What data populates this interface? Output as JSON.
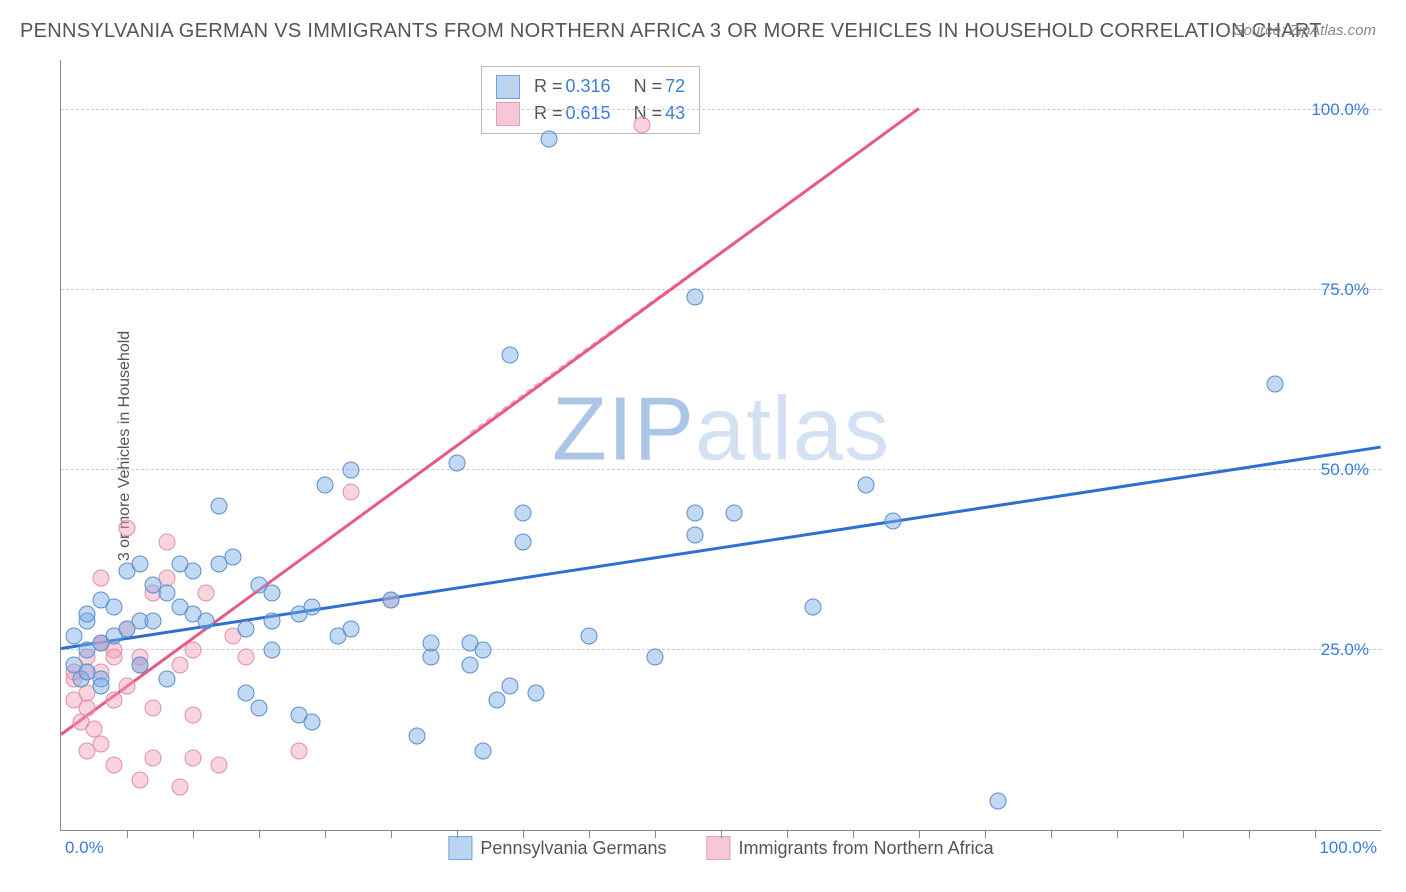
{
  "title": "PENNSYLVANIA GERMAN VS IMMIGRANTS FROM NORTHERN AFRICA 3 OR MORE VEHICLES IN HOUSEHOLD CORRELATION CHART",
  "source": "Source: ZipAtlas.com",
  "y_axis_label": "3 or more Vehicles in Household",
  "watermark_a": "ZIP",
  "watermark_b": "atlas",
  "chart": {
    "type": "scatter",
    "xlim": [
      0,
      100
    ],
    "ylim": [
      0,
      107
    ],
    "x_tick_min": "0.0%",
    "x_tick_max": "100.0%",
    "y_ticks": [
      {
        "v": 25,
        "label": "25.0%"
      },
      {
        "v": 50,
        "label": "50.0%"
      },
      {
        "v": 75,
        "label": "75.0%"
      },
      {
        "v": 100,
        "label": "100.0%"
      }
    ],
    "x_minor_ticks": [
      5,
      10,
      15,
      20,
      25,
      30,
      35,
      40,
      45,
      50,
      55,
      60,
      65,
      70,
      75,
      80,
      85,
      90,
      95
    ],
    "background_color": "#ffffff",
    "grid_color": "#cccccc",
    "marker_radius": 8.5,
    "marker_border": 1,
    "series": [
      {
        "name": "Pennsylvania Germans",
        "color_fill": "rgba(120,170,230,0.45)",
        "color_stroke": "#5b8fce",
        "swatch_fill": "#bcd4ef",
        "swatch_border": "#6fa2de",
        "r": "0.316",
        "n": "72",
        "trend": {
          "x1": 0,
          "y1": 25,
          "x2": 100,
          "y2": 53,
          "color": "#2f6fd0",
          "width": 3,
          "dash": "none"
        },
        "points": [
          [
            1,
            23
          ],
          [
            1,
            27
          ],
          [
            1.5,
            21
          ],
          [
            2,
            22
          ],
          [
            2,
            29
          ],
          [
            2,
            30
          ],
          [
            2,
            25
          ],
          [
            3,
            26
          ],
          [
            3,
            32
          ],
          [
            3,
            21
          ],
          [
            4,
            27
          ],
          [
            4,
            31
          ],
          [
            5,
            28
          ],
          [
            5,
            36
          ],
          [
            6,
            37
          ],
          [
            6,
            29
          ],
          [
            7,
            29
          ],
          [
            7,
            34
          ],
          [
            8,
            21
          ],
          [
            8,
            33
          ],
          [
            9,
            31
          ],
          [
            9,
            37
          ],
          [
            10,
            36
          ],
          [
            10,
            30
          ],
          [
            11,
            29
          ],
          [
            12,
            45
          ],
          [
            12,
            37
          ],
          [
            13,
            38
          ],
          [
            14,
            19
          ],
          [
            15,
            17
          ],
          [
            15,
            34
          ],
          [
            16,
            29
          ],
          [
            16,
            33
          ],
          [
            18,
            16
          ],
          [
            18,
            30
          ],
          [
            19,
            15
          ],
          [
            20,
            48
          ],
          [
            21,
            27
          ],
          [
            22,
            50
          ],
          [
            22,
            28
          ],
          [
            25,
            32
          ],
          [
            27,
            13
          ],
          [
            28,
            24
          ],
          [
            28,
            26
          ],
          [
            30,
            51
          ],
          [
            31,
            23
          ],
          [
            31,
            26
          ],
          [
            32,
            25
          ],
          [
            32,
            11
          ],
          [
            33,
            18
          ],
          [
            34,
            20
          ],
          [
            34,
            66
          ],
          [
            35,
            44
          ],
          [
            35,
            40
          ],
          [
            36,
            19
          ],
          [
            37,
            96
          ],
          [
            40,
            27
          ],
          [
            45,
            24
          ],
          [
            48,
            74
          ],
          [
            48,
            44
          ],
          [
            48,
            41
          ],
          [
            51,
            44
          ],
          [
            57,
            31
          ],
          [
            61,
            48
          ],
          [
            63,
            43
          ],
          [
            71,
            4
          ],
          [
            92,
            62
          ],
          [
            3,
            20
          ],
          [
            6,
            23
          ],
          [
            14,
            28
          ],
          [
            16,
            25
          ],
          [
            19,
            31
          ]
        ]
      },
      {
        "name": "Immigrants from Northern Africa",
        "color_fill": "rgba(240,160,185,0.45)",
        "color_stroke": "#e38fa8",
        "swatch_fill": "#f6c7d4",
        "swatch_border": "#eb9cb4",
        "r": "0.615",
        "n": "43",
        "trend": {
          "x1": 0,
          "y1": 13,
          "x2": 65,
          "y2": 100,
          "color": "#e75a87",
          "width": 3,
          "dash": "none"
        },
        "trend_ext": {
          "x1": 31,
          "y1": 55,
          "x2": 65,
          "y2": 100,
          "color": "#f3a8bd",
          "width": 2,
          "dash": "6,6"
        },
        "points": [
          [
            1,
            18
          ],
          [
            1,
            21
          ],
          [
            1,
            22
          ],
          [
            1.5,
            15
          ],
          [
            2,
            11
          ],
          [
            2,
            17
          ],
          [
            2,
            19
          ],
          [
            2,
            24
          ],
          [
            2.5,
            14
          ],
          [
            2,
            22
          ],
          [
            3,
            22
          ],
          [
            3,
            12
          ],
          [
            3,
            26
          ],
          [
            3,
            26
          ],
          [
            3,
            35
          ],
          [
            4,
            9
          ],
          [
            4,
            18
          ],
          [
            4,
            25
          ],
          [
            4,
            24
          ],
          [
            5,
            20
          ],
          [
            5,
            28
          ],
          [
            5,
            42
          ],
          [
            6,
            7
          ],
          [
            6,
            24
          ],
          [
            6,
            23
          ],
          [
            7,
            10
          ],
          [
            7,
            33
          ],
          [
            7,
            17
          ],
          [
            8,
            35
          ],
          [
            8,
            40
          ],
          [
            9,
            6
          ],
          [
            9,
            23
          ],
          [
            10,
            10
          ],
          [
            10,
            16
          ],
          [
            10,
            25
          ],
          [
            11,
            33
          ],
          [
            12,
            9
          ],
          [
            13,
            27
          ],
          [
            14,
            24
          ],
          [
            18,
            11
          ],
          [
            22,
            47
          ],
          [
            25,
            32
          ],
          [
            44,
            98
          ]
        ]
      }
    ]
  }
}
